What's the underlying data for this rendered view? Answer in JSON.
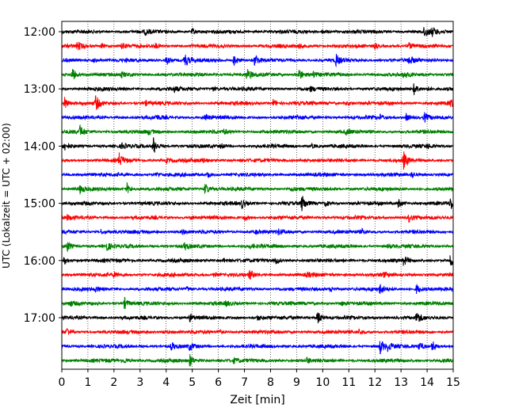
{
  "chart_data": {
    "type": "line",
    "title": "",
    "xlabel": "Zeit  [min]",
    "ylabel": "UTC (Lokalzeit = UTC + 02:00)",
    "xlim": [
      0,
      15
    ],
    "xticks": [
      0,
      1,
      2,
      3,
      4,
      5,
      6,
      7,
      8,
      9,
      10,
      11,
      12,
      13,
      14,
      15
    ],
    "grid": "vertical dotted lines at each minute",
    "ytick_labels": [
      "12:00",
      "13:00",
      "14:00",
      "15:00",
      "16:00",
      "17:00"
    ],
    "trace_interval_min": 15,
    "trace_colors": [
      "#000000",
      "#ff0000",
      "#0000ff",
      "#008000"
    ],
    "trace_starts": [
      "12:00",
      "12:15",
      "12:30",
      "12:45",
      "13:00",
      "13:15",
      "13:30",
      "13:45",
      "14:00",
      "14:15",
      "14:30",
      "14:45",
      "15:00",
      "15:15",
      "15:30",
      "15:45",
      "16:00",
      "16:15",
      "16:30",
      "16:45",
      "17:00",
      "17:15",
      "17:30",
      "17:45"
    ],
    "events": [
      [
        [
          3.2,
          0.35
        ],
        [
          5.0,
          0.4
        ],
        [
          10.0,
          0.35
        ],
        [
          13.9,
          0.9
        ],
        [
          14.2,
          0.5
        ]
      ],
      [
        [
          0.6,
          0.6
        ],
        [
          1.5,
          0.3
        ],
        [
          2.3,
          0.3
        ],
        [
          3.6,
          0.3
        ],
        [
          9.1,
          0.3
        ],
        [
          12.0,
          0.3
        ],
        [
          13.3,
          0.3
        ]
      ],
      [
        [
          1.2,
          0.3
        ],
        [
          4.0,
          0.6
        ],
        [
          4.7,
          1.0
        ],
        [
          6.6,
          0.8
        ],
        [
          7.4,
          0.8
        ],
        [
          10.5,
          0.8
        ],
        [
          13.3,
          0.6
        ]
      ],
      [
        [
          0.4,
          0.9
        ],
        [
          2.3,
          0.3
        ],
        [
          7.1,
          0.8
        ],
        [
          9.1,
          0.9
        ],
        [
          9.6,
          0.5
        ],
        [
          13.1,
          0.4
        ]
      ],
      [
        [
          4.3,
          0.35
        ],
        [
          5.8,
          0.3
        ],
        [
          9.5,
          0.3
        ],
        [
          13.5,
          0.8
        ],
        [
          14.0,
          0.3
        ]
      ],
      [
        [
          0.1,
          0.9
        ],
        [
          1.3,
          1.0
        ],
        [
          3.2,
          0.3
        ],
        [
          8.1,
          0.5
        ],
        [
          10.9,
          0.3
        ],
        [
          14.9,
          0.5
        ]
      ],
      [
        [
          3.6,
          0.3
        ],
        [
          5.5,
          0.5
        ],
        [
          9.0,
          0.3
        ],
        [
          12.2,
          0.3
        ],
        [
          13.2,
          0.5
        ],
        [
          13.9,
          0.6
        ]
      ],
      [
        [
          0.7,
          0.8
        ],
        [
          3.3,
          0.3
        ],
        [
          6.2,
          0.3
        ],
        [
          10.9,
          0.3
        ]
      ],
      [
        [
          0.1,
          0.5
        ],
        [
          2.3,
          0.3
        ],
        [
          3.5,
          1.3
        ],
        [
          6.1,
          0.3
        ],
        [
          9.6,
          0.3
        ],
        [
          14.0,
          0.3
        ]
      ],
      [
        [
          2.2,
          0.9
        ],
        [
          4.0,
          0.3
        ],
        [
          5.4,
          0.3
        ],
        [
          9.3,
          0.3
        ],
        [
          13.1,
          1.1
        ]
      ],
      [
        [
          3.6,
          0.3
        ],
        [
          5.6,
          0.4
        ],
        [
          13.4,
          0.3
        ]
      ],
      [
        [
          0.7,
          0.6
        ],
        [
          2.5,
          0.7
        ],
        [
          5.5,
          0.9
        ],
        [
          8.8,
          0.3
        ]
      ],
      [
        [
          6.9,
          0.6
        ],
        [
          9.2,
          1.1
        ],
        [
          10.1,
          0.4
        ],
        [
          12.9,
          0.6
        ],
        [
          14.9,
          0.9
        ]
      ],
      [
        [
          0.2,
          0.3
        ],
        [
          4.9,
          0.3
        ],
        [
          7.0,
          0.4
        ],
        [
          13.3,
          0.6
        ]
      ],
      [
        [
          1.5,
          0.3
        ],
        [
          4.6,
          0.3
        ],
        [
          7.4,
          0.3
        ],
        [
          8.3,
          0.3
        ],
        [
          11.5,
          0.3
        ]
      ],
      [
        [
          0.2,
          0.7
        ],
        [
          1.7,
          0.7
        ],
        [
          4.7,
          0.5
        ],
        [
          7.2,
          0.3
        ],
        [
          12.5,
          0.3
        ]
      ],
      [
        [
          0.1,
          0.5
        ],
        [
          6.2,
          0.3
        ],
        [
          8.2,
          0.4
        ],
        [
          13.1,
          0.6
        ],
        [
          14.9,
          0.9
        ]
      ],
      [
        [
          2.0,
          0.3
        ],
        [
          5.8,
          0.3
        ],
        [
          7.2,
          0.6
        ],
        [
          9.4,
          0.3
        ],
        [
          12.3,
          0.3
        ]
      ],
      [
        [
          1.3,
          0.3
        ],
        [
          4.8,
          0.3
        ],
        [
          10.3,
          0.3
        ],
        [
          12.2,
          0.7
        ],
        [
          13.6,
          0.7
        ]
      ],
      [
        [
          0.3,
          0.3
        ],
        [
          2.4,
          0.8
        ],
        [
          6.3,
          0.3
        ],
        [
          10.7,
          0.3
        ]
      ],
      [
        [
          4.9,
          0.5
        ],
        [
          7.5,
          0.3
        ],
        [
          9.8,
          1.0
        ],
        [
          13.6,
          0.9
        ]
      ],
      [
        [
          0.2,
          0.5
        ],
        [
          3.9,
          0.3
        ],
        [
          6.0,
          0.3
        ],
        [
          11.4,
          0.3
        ]
      ],
      [
        [
          4.2,
          0.5
        ],
        [
          4.9,
          0.5
        ],
        [
          12.2,
          1.0
        ],
        [
          12.5,
          0.6
        ],
        [
          13.7,
          0.6
        ],
        [
          14.2,
          0.8
        ]
      ],
      [
        [
          2.4,
          0.3
        ],
        [
          4.9,
          0.8
        ],
        [
          6.6,
          0.3
        ],
        [
          9.4,
          0.3
        ]
      ]
    ]
  }
}
